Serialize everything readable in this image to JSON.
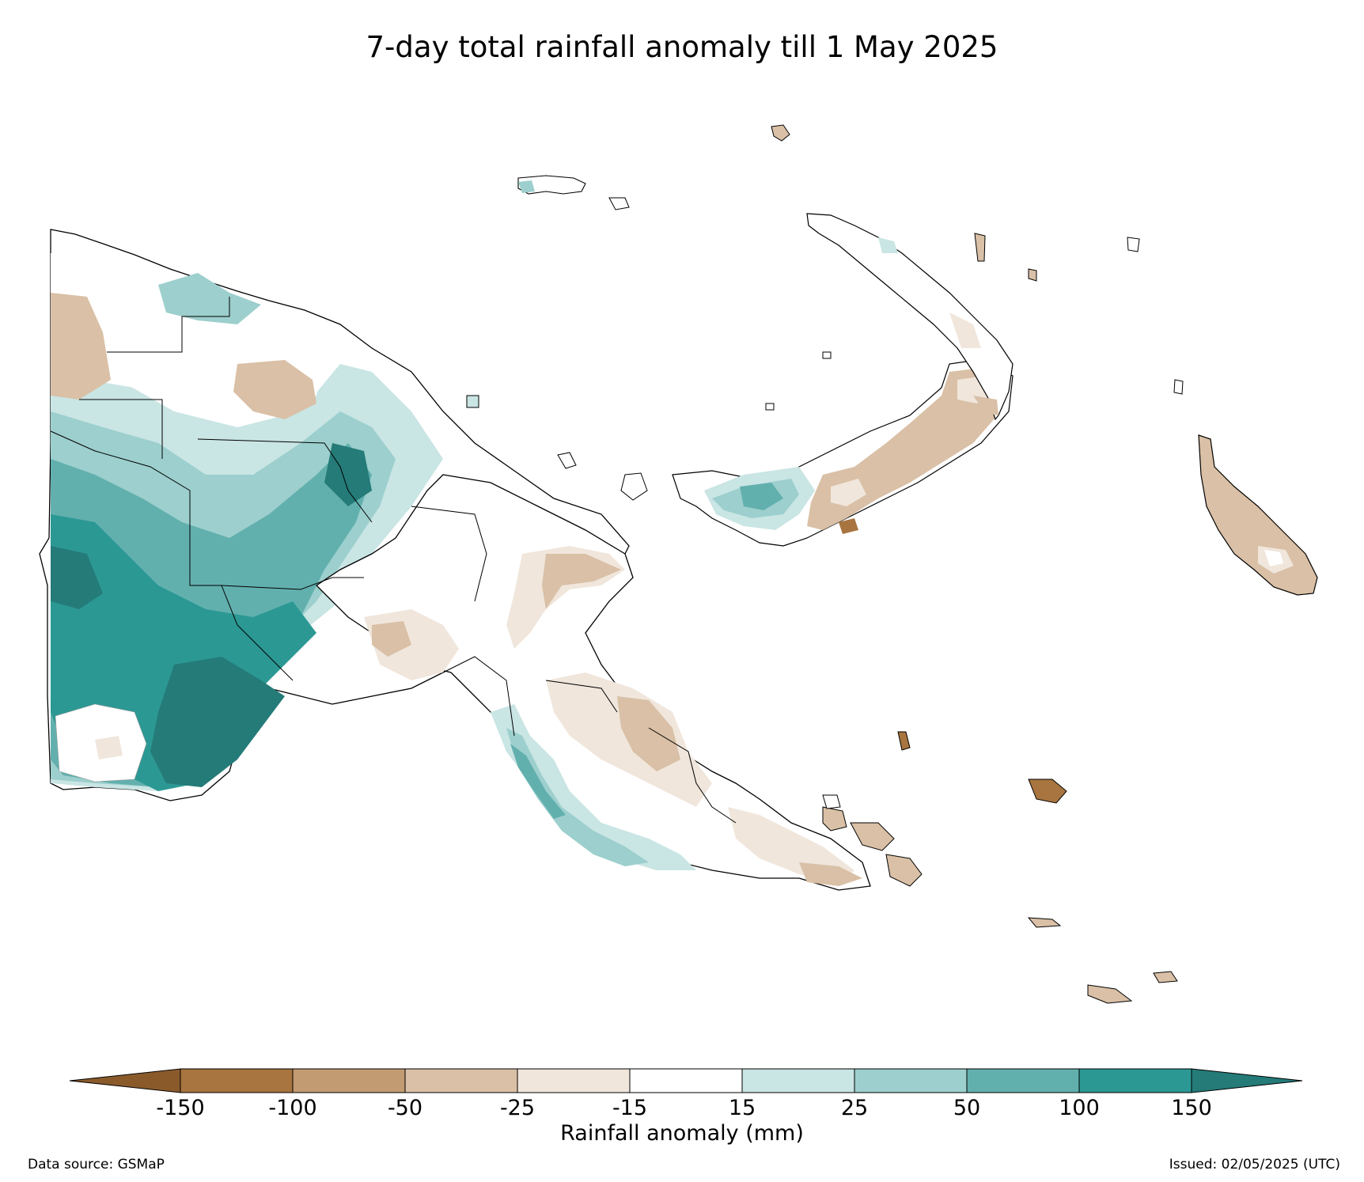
{
  "title": "7-day total rainfall anomaly till 1 May 2025",
  "colorbar": {
    "label": "Rainfall anomaly (mm)",
    "ticks": [
      "-150",
      "-100",
      "-50",
      "-25",
      "-15",
      "15",
      "25",
      "50",
      "100",
      "150"
    ],
    "colors": {
      "below_-150": "#8b5a2b",
      "-150_-100": "#a8743f",
      "-100_-50": "#c29b72",
      "-50_-25": "#d9c0a6",
      "-25_-15": "#f0e6dc",
      "-15_15": "#ffffff",
      "15_25": "#c9e5e4",
      "25_50": "#9ccfcd",
      "50_100": "#62b0ae",
      "100_150": "#2c9894",
      "above_150": "#247b78"
    }
  },
  "footer": {
    "source": "Data source: GSMaP",
    "issued": "Issued: 02/05/2025 (UTC)"
  }
}
